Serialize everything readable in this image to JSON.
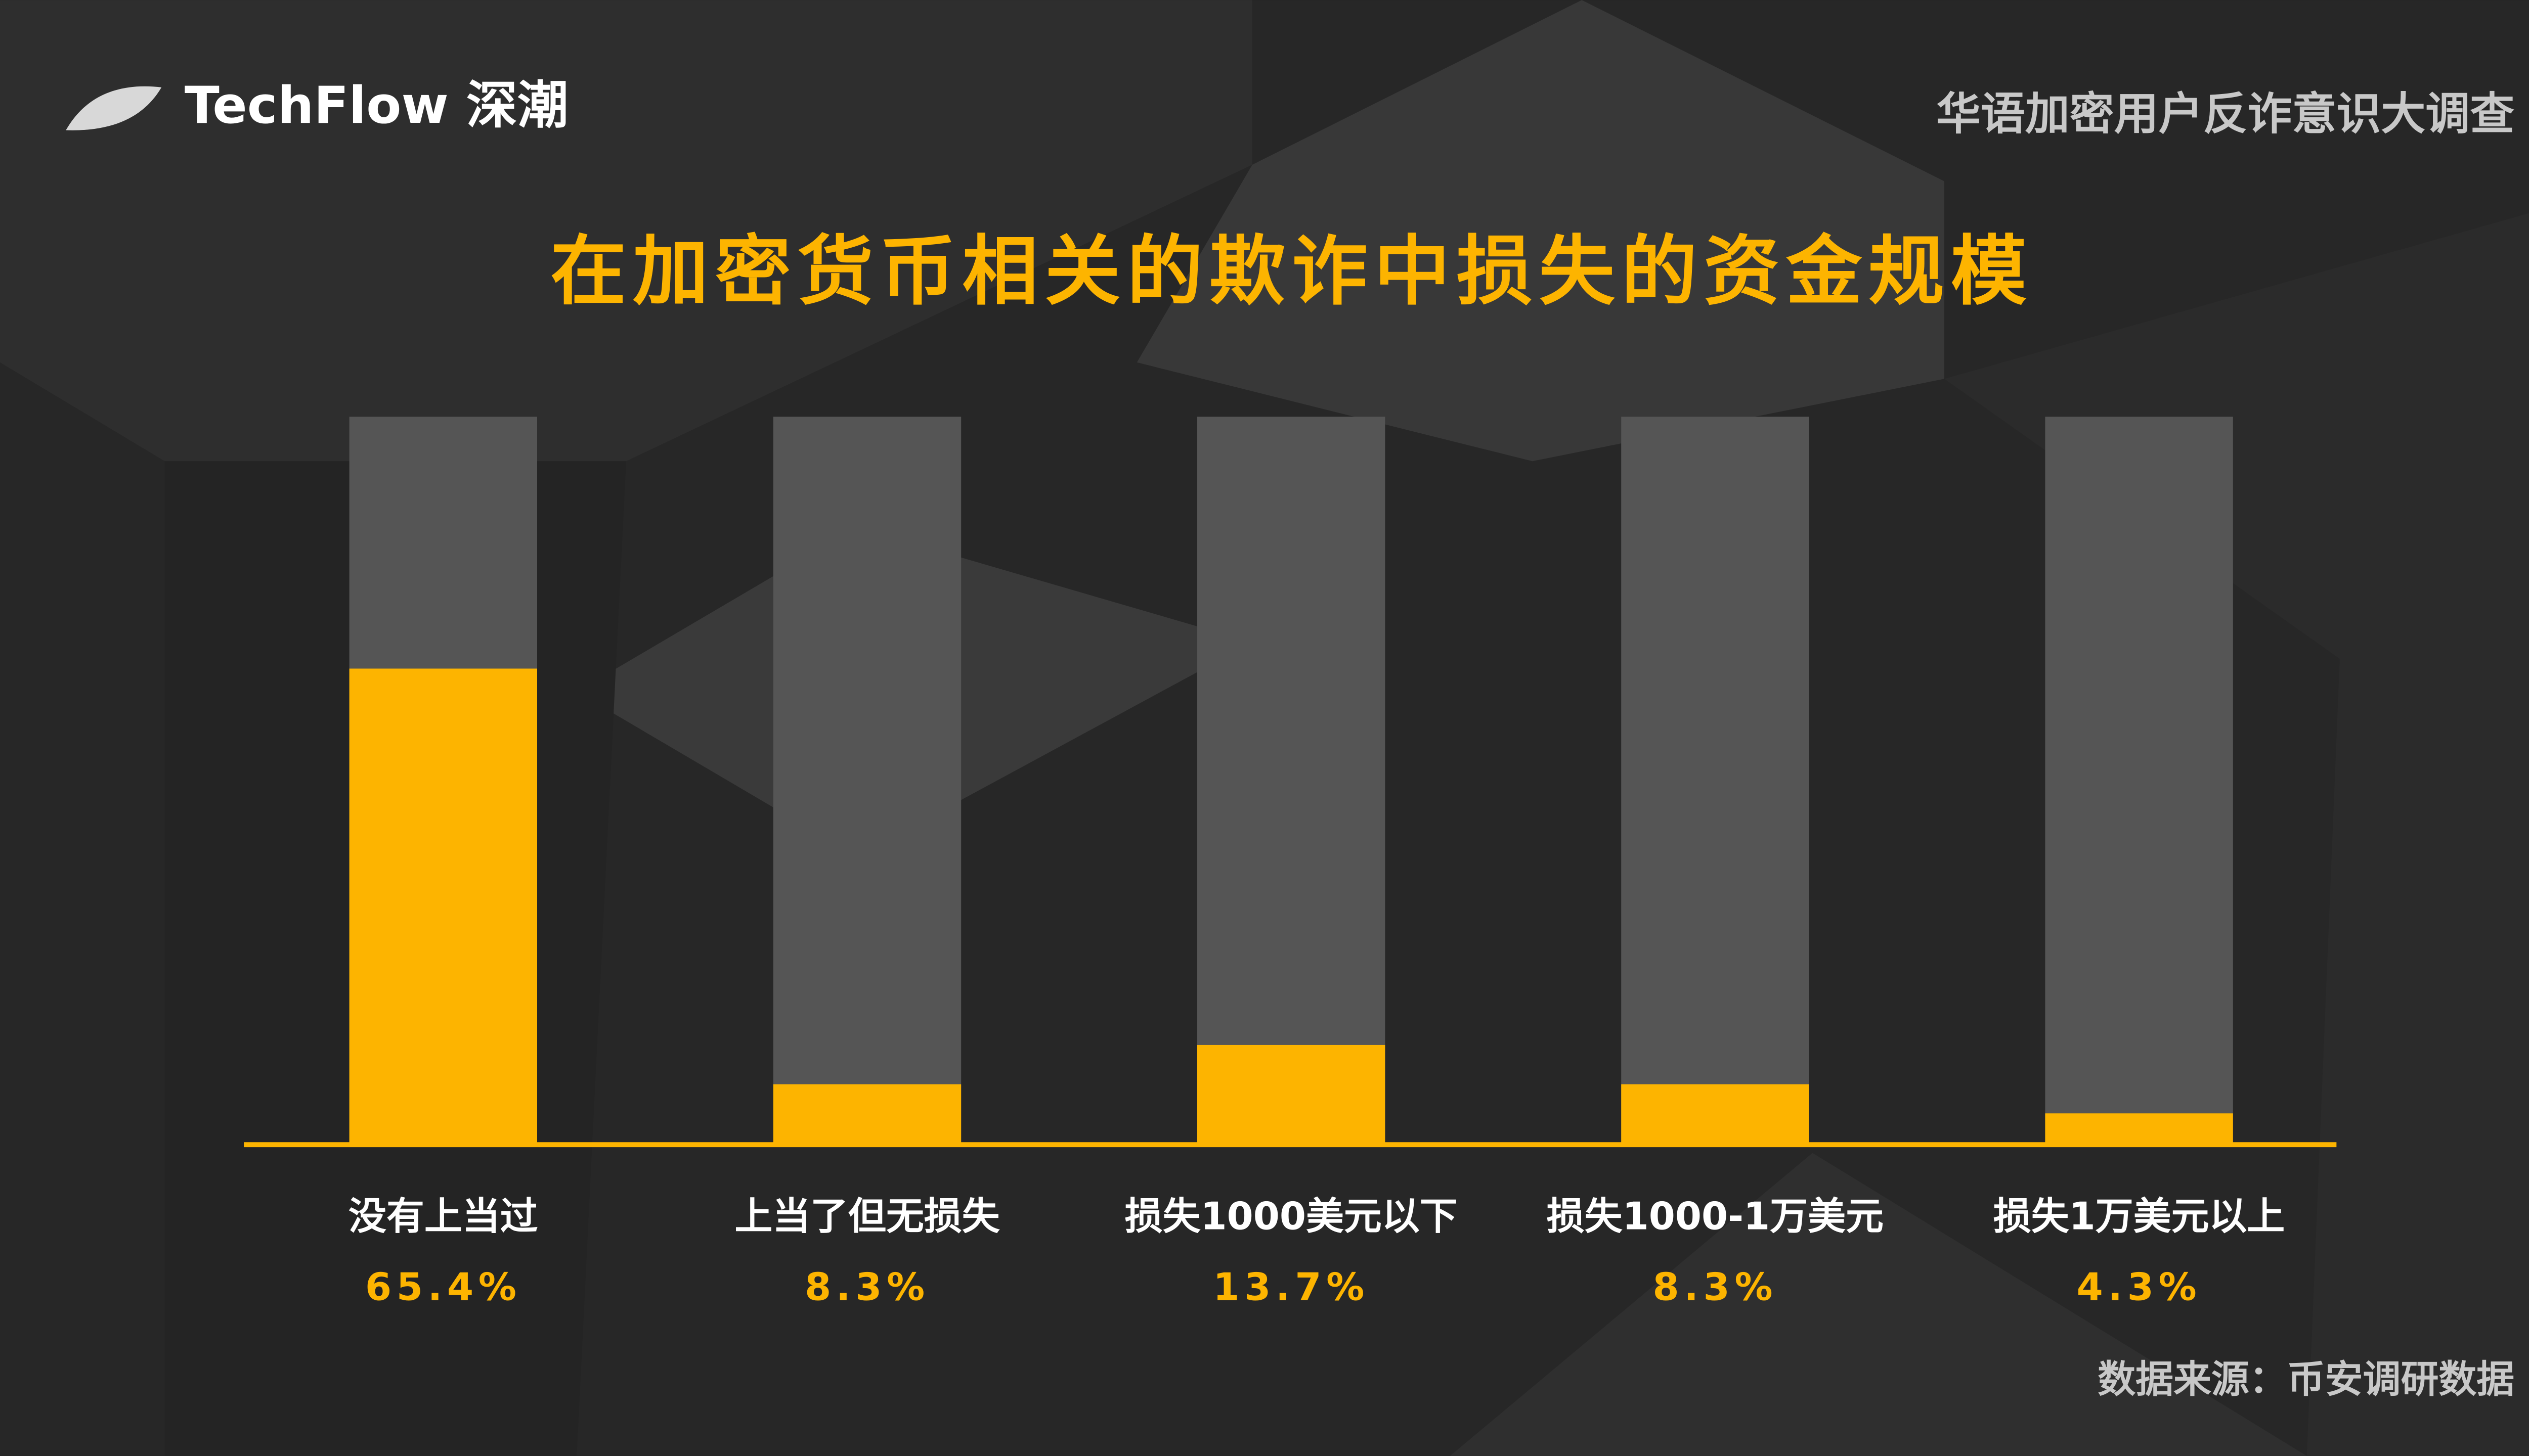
{
  "brand": "TechFlow 深潮",
  "header": "华语加密用户反诈意识大调查",
  "source": "数据来源：币安调研数据",
  "chart_data": {
    "type": "bar",
    "title": "在加密货币相关的欺诈中损失的资金规模",
    "categories": [
      "没有上当过",
      "上当了但无损失",
      "损失1000美元以下",
      "损失1000-1万美元",
      "损失1万美元以上"
    ],
    "values": [
      65.4,
      8.3,
      13.7,
      8.3,
      4.3
    ],
    "value_labels": [
      "65.4%",
      "8.3%",
      "13.7%",
      "8.3%",
      "4.3%"
    ],
    "color": "#FDB400",
    "ylim": [
      0,
      100
    ]
  }
}
